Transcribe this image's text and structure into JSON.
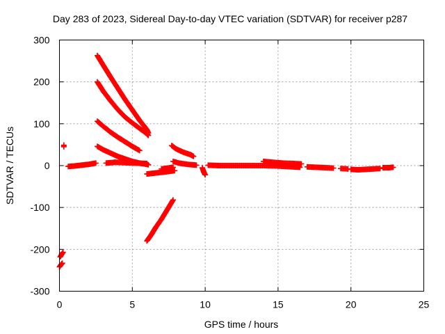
{
  "chart_data": {
    "type": "scatter",
    "title": "Day 283 of 2023, Sidereal Day-to-day VTEC variation (SDTVAR) for receiver p287",
    "xlabel": "GPS time / hours",
    "ylabel": "SDTVAR / TECUs",
    "xlim": [
      0,
      25
    ],
    "ylim": [
      -300,
      300
    ],
    "xticks": [
      0,
      5,
      10,
      15,
      20,
      25
    ],
    "yticks": [
      -300,
      -200,
      -100,
      0,
      100,
      200,
      300
    ],
    "xtick_labels": [
      "0",
      "5",
      "10",
      "15",
      "20",
      "25"
    ],
    "ytick_labels": [
      "-300",
      "-200",
      "-100",
      "0",
      "100",
      "200",
      "300"
    ],
    "grid": true,
    "marker": "+",
    "marker_color": "#ff0000",
    "series": [
      {
        "name": "arc-1",
        "x": [
          2.6,
          3.0,
          3.5,
          4.0,
          4.5,
          5.0,
          5.5,
          6.0,
          6.1
        ],
        "y": [
          263,
          240,
          212,
          185,
          158,
          133,
          108,
          86,
          78
        ]
      },
      {
        "name": "arc-2",
        "x": [
          2.6,
          3.0,
          3.5,
          4.0,
          4.5,
          5.0,
          5.5,
          6.0,
          6.1
        ],
        "y": [
          200,
          178,
          155,
          134,
          116,
          102,
          89,
          76,
          72
        ]
      },
      {
        "name": "arc-3",
        "x": [
          2.6,
          3.0,
          3.5,
          4.0,
          4.5,
          5.0,
          5.5
        ],
        "y": [
          106,
          94,
          80,
          68,
          57,
          46,
          36
        ]
      },
      {
        "name": "arc-4",
        "x": [
          2.6,
          3.0,
          3.5,
          4.0,
          4.5,
          5.0,
          5.5,
          6.0,
          6.1
        ],
        "y": [
          46,
          38,
          30,
          22,
          16,
          10,
          6,
          3,
          2
        ]
      },
      {
        "name": "arc-5",
        "x": [
          7.7,
          8.0,
          8.5,
          9.0,
          9.2
        ],
        "y": [
          48,
          40,
          32,
          26,
          22
        ]
      },
      {
        "name": "arc-6",
        "x": [
          6.0,
          6.3,
          6.6,
          7.0,
          7.4,
          7.8
        ],
        "y": [
          -180,
          -165,
          -148,
          -128,
          -105,
          -82
        ]
      },
      {
        "name": "arc-7",
        "x": [
          0.6,
          1.0,
          1.5,
          2.0,
          2.5
        ],
        "y": [
          -2,
          -1,
          1,
          3,
          6
        ]
      },
      {
        "name": "arc-8",
        "x": [
          3.2,
          3.8,
          4.5,
          5.2,
          6.0
        ],
        "y": [
          6,
          8,
          7,
          6,
          5
        ]
      },
      {
        "name": "arc-9",
        "x": [
          6.0,
          6.5,
          7.0,
          7.5,
          7.9
        ],
        "y": [
          -20,
          -18,
          -16,
          -14,
          -12
        ]
      },
      {
        "name": "arc-10",
        "x": [
          7.0,
          7.4,
          7.8
        ],
        "y": [
          -8,
          -6,
          -4
        ]
      },
      {
        "name": "arc-11",
        "x": [
          7.8,
          8.2,
          8.8,
          9.4
        ],
        "y": [
          10,
          6,
          3,
          1
        ]
      },
      {
        "name": "arc-12",
        "x": [
          9.8,
          9.9,
          10.0
        ],
        "y": [
          -5,
          -15,
          -22
        ]
      },
      {
        "name": "arc-13",
        "x": [
          10.2,
          11.0,
          12.0,
          13.0,
          14.0,
          15.0,
          16.0,
          16.5
        ],
        "y": [
          1,
          0,
          0,
          0,
          0,
          -1,
          -3,
          -4
        ]
      },
      {
        "name": "arc-14",
        "x": [
          14.0,
          14.6,
          15.3,
          16.0,
          16.6
        ],
        "y": [
          10,
          8,
          6,
          5,
          4
        ]
      },
      {
        "name": "arc-15",
        "x": [
          17.0,
          17.6,
          18.3,
          18.8
        ],
        "y": [
          -3,
          -4,
          -5,
          -6
        ]
      },
      {
        "name": "arc-16",
        "x": [
          19.3,
          19.8
        ],
        "y": [
          -7,
          -8
        ]
      },
      {
        "name": "arc-17",
        "x": [
          20.0,
          20.5,
          21.0,
          21.5,
          22.0
        ],
        "y": [
          -9,
          -10,
          -9,
          -8,
          -7
        ]
      },
      {
        "name": "arc-18",
        "x": [
          22.2,
          22.6,
          22.9
        ],
        "y": [
          -5,
          -5,
          -4
        ]
      },
      {
        "name": "isolated-1",
        "x": [
          0.3,
          0.3
        ],
        "y": [
          49,
          45
        ]
      },
      {
        "name": "isolated-2",
        "x": [
          0.05,
          0.15,
          0.25
        ],
        "y": [
          -218,
          -212,
          -207
        ]
      },
      {
        "name": "isolated-3",
        "x": [
          0.0,
          0.1,
          0.2
        ],
        "y": [
          -242,
          -237,
          -233
        ]
      }
    ]
  }
}
